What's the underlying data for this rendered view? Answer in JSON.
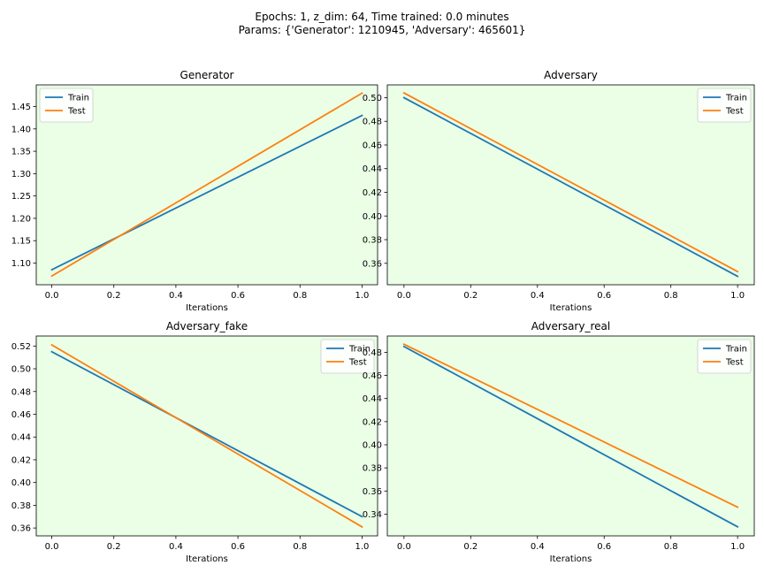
{
  "figure": {
    "title_line1": "Epochs: 1, z_dim: 64, Time trained: 0.0 minutes",
    "title_line2": "Params: {'Generator': 1210945, 'Adversary': 465601}",
    "background": "#ffffff"
  },
  "colors": {
    "axes_face": "#eaffe6",
    "train": "#1f77b4",
    "test": "#ff7f0e"
  },
  "chart_data": [
    {
      "type": "line",
      "title": "Generator",
      "xlabel": "Iterations",
      "ylabel": "",
      "xlim": [
        -0.05,
        1.05
      ],
      "ylim": [
        1.0515,
        1.4985
      ],
      "xticks": [
        0.0,
        0.2,
        0.4,
        0.6,
        0.8,
        1.0
      ],
      "xtick_labels": [
        "0.0",
        "0.2",
        "0.4",
        "0.6",
        "0.8",
        "1.0"
      ],
      "yticks": [
        1.1,
        1.15,
        1.2,
        1.25,
        1.3,
        1.35,
        1.4,
        1.45
      ],
      "ytick_labels": [
        "1.10",
        "1.15",
        "1.20",
        "1.25",
        "1.30",
        "1.35",
        "1.40",
        "1.45"
      ],
      "legend": "top-left",
      "grid": false,
      "x": [
        0,
        1
      ],
      "series": [
        {
          "name": "Train",
          "values": [
            1.085,
            1.43
          ]
        },
        {
          "name": "Test",
          "values": [
            1.071,
            1.48
          ]
        }
      ]
    },
    {
      "type": "line",
      "title": "Adversary",
      "xlabel": "Iterations",
      "ylabel": "",
      "xlim": [
        -0.05,
        1.05
      ],
      "ylim": [
        0.3419,
        0.5108
      ],
      "xticks": [
        0.0,
        0.2,
        0.4,
        0.6,
        0.8,
        1.0
      ],
      "xtick_labels": [
        "0.0",
        "0.2",
        "0.4",
        "0.6",
        "0.8",
        "1.0"
      ],
      "yticks": [
        0.36,
        0.38,
        0.4,
        0.42,
        0.44,
        0.46,
        0.48,
        0.5
      ],
      "ytick_labels": [
        "0.36",
        "0.38",
        "0.40",
        "0.42",
        "0.44",
        "0.46",
        "0.48",
        "0.50"
      ],
      "legend": "top-right",
      "grid": false,
      "x": [
        0,
        1
      ],
      "series": [
        {
          "name": "Train",
          "values": [
            0.5,
            0.349
          ]
        },
        {
          "name": "Test",
          "values": [
            0.504,
            0.353
          ]
        }
      ]
    },
    {
      "type": "line",
      "title": "Adversary_fake",
      "xlabel": "Iterations",
      "ylabel": "",
      "xlim": [
        -0.05,
        1.05
      ],
      "ylim": [
        0.3531,
        0.5288
      ],
      "xticks": [
        0.0,
        0.2,
        0.4,
        0.6,
        0.8,
        1.0
      ],
      "xtick_labels": [
        "0.0",
        "0.2",
        "0.4",
        "0.6",
        "0.8",
        "1.0"
      ],
      "yticks": [
        0.36,
        0.38,
        0.4,
        0.42,
        0.44,
        0.46,
        0.48,
        0.5,
        0.52
      ],
      "ytick_labels": [
        "0.36",
        "0.38",
        "0.40",
        "0.42",
        "0.44",
        "0.46",
        "0.48",
        "0.50",
        "0.52"
      ],
      "legend": "top-right",
      "grid": false,
      "x": [
        0,
        1
      ],
      "series": [
        {
          "name": "Train",
          "values": [
            0.515,
            0.37
          ]
        },
        {
          "name": "Test",
          "values": [
            0.521,
            0.361
          ]
        }
      ]
    },
    {
      "type": "line",
      "title": "Adversary_real",
      "xlabel": "Iterations",
      "ylabel": "",
      "xlim": [
        -0.05,
        1.05
      ],
      "ylim": [
        0.3212,
        0.4941
      ],
      "xticks": [
        0.0,
        0.2,
        0.4,
        0.6,
        0.8,
        1.0
      ],
      "xtick_labels": [
        "0.0",
        "0.2",
        "0.4",
        "0.6",
        "0.8",
        "1.0"
      ],
      "yticks": [
        0.34,
        0.36,
        0.38,
        0.4,
        0.42,
        0.44,
        0.46,
        0.48
      ],
      "ytick_labels": [
        "0.34",
        "0.36",
        "0.38",
        "0.40",
        "0.42",
        "0.44",
        "0.46",
        "0.48"
      ],
      "legend": "top-right",
      "grid": false,
      "x": [
        0,
        1
      ],
      "series": [
        {
          "name": "Train",
          "values": [
            0.485,
            0.329
          ]
        },
        {
          "name": "Test",
          "values": [
            0.487,
            0.346
          ]
        }
      ]
    }
  ]
}
